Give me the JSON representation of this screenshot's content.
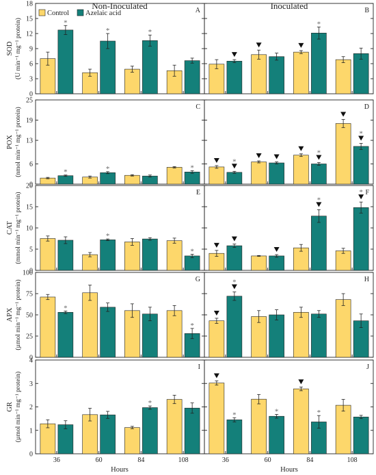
{
  "chart_data": {
    "type": "bar",
    "column_titles": [
      "Non-Inoculated",
      "Inoculated"
    ],
    "legend": [
      {
        "name": "Control",
        "color": "#FDD76B"
      },
      {
        "name": "Azelaic acid",
        "color": "#14807A"
      }
    ],
    "legend_placement": "top-left",
    "categories": [
      "36",
      "60",
      "84",
      "108"
    ],
    "xlabel": "Hours",
    "colors": {
      "control": "#FDD76B",
      "azelaic": "#14807A",
      "edge": "#222222"
    },
    "grid": false,
    "rows": [
      {
        "ylabel_main": "SOD",
        "ylabel_unit": "(U min⁻¹ mg⁻¹ protein)",
        "ylim": [
          0,
          18
        ],
        "yticks": [
          0,
          3,
          6,
          9,
          12,
          15,
          18
        ],
        "ytick_labels": [
          "0",
          "3",
          "6",
          "9",
          "12",
          "15",
          "18"
        ],
        "panels": [
          {
            "letter": "A",
            "series": [
              {
                "name": "Control",
                "values": [
                  7.0,
                  4.2,
                  4.9,
                  4.6
                ],
                "errors": [
                  1.3,
                  0.7,
                  0.6,
                  1.1
                ],
                "marks": [
                  "",
                  "",
                  "",
                  ""
                ]
              },
              {
                "name": "Azelaic acid",
                "values": [
                  12.7,
                  10.5,
                  10.6,
                  6.6
                ],
                "errors": [
                  0.9,
                  1.5,
                  1.1,
                  0.5
                ],
                "marks": [
                  "*",
                  "*",
                  "*",
                  ""
                ]
              }
            ]
          },
          {
            "letter": "B",
            "series": [
              {
                "name": "Control",
                "values": [
                  5.9,
                  7.8,
                  8.3,
                  6.8
                ],
                "errors": [
                  0.9,
                  0.9,
                  0.3,
                  0.6
                ],
                "marks": [
                  "",
                  "▼",
                  "▼",
                  ""
                ]
              },
              {
                "name": "Azelaic acid",
                "values": [
                  6.5,
                  7.4,
                  12.1,
                  8.0
                ],
                "errors": [
                  0.3,
                  0.7,
                  1.2,
                  1.1
                ],
                "marks": [
                  "▼",
                  "",
                  "*",
                  ""
                ]
              }
            ]
          }
        ]
      },
      {
        "ylabel_main": "POX",
        "ylabel_unit": "(nmol min⁻¹ mg⁻¹ protein)",
        "ylim": [
          0,
          25
        ],
        "yticks": [
          0,
          6,
          13,
          19,
          25
        ],
        "ytick_labels": [
          "0",
          "6",
          "13",
          "19",
          "25"
        ],
        "panels": [
          {
            "letter": "C",
            "series": [
              {
                "name": "Control",
                "values": [
                  1.8,
                  2.1,
                  2.6,
                  5.0
                ],
                "errors": [
                  0.2,
                  0.3,
                  0.2,
                  0.2
                ],
                "marks": [
                  "",
                  "",
                  "",
                  ""
                ]
              },
              {
                "name": "Azelaic acid",
                "values": [
                  2.5,
                  3.4,
                  2.4,
                  3.6
                ],
                "errors": [
                  0.2,
                  0.3,
                  0.3,
                  0.4
                ],
                "marks": [
                  "*",
                  "*",
                  "",
                  "*"
                ]
              }
            ]
          },
          {
            "letter": "D",
            "series": [
              {
                "name": "Control",
                "values": [
                  5.1,
                  6.6,
                  8.6,
                  18.0
                ],
                "errors": [
                  0.4,
                  0.3,
                  0.4,
                  1.2
                ],
                "marks": [
                  "▼",
                  "▼",
                  "▼",
                  "▼"
                ]
              },
              {
                "name": "Azelaic acid",
                "values": [
                  3.5,
                  6.3,
                  6.0,
                  11.2
                ],
                "errors": [
                  0.3,
                  0.3,
                  0.4,
                  0.9
                ],
                "marks": [
                  "▼*",
                  "▼",
                  "▼*",
                  "▼*"
                ]
              }
            ]
          }
        ]
      },
      {
        "ylabel_main": "CAT",
        "ylabel_unit": "(mmol min⁻¹ mg⁻¹ protein)",
        "ylim": [
          0,
          20
        ],
        "yticks": [
          0,
          5,
          10,
          15,
          20
        ],
        "ytick_labels": [
          "0",
          "5",
          "10",
          "15",
          "20"
        ],
        "panels": [
          {
            "letter": "E",
            "series": [
              {
                "name": "Control",
                "values": [
                  7.5,
                  3.7,
                  6.7,
                  7.0
                ],
                "errors": [
                  0.6,
                  0.5,
                  0.8,
                  0.6
                ],
                "marks": [
                  "",
                  "",
                  "",
                  ""
                ]
              },
              {
                "name": "Azelaic acid",
                "values": [
                  7.1,
                  7.2,
                  7.4,
                  3.4
                ],
                "errors": [
                  0.8,
                  0.2,
                  0.3,
                  0.4
                ],
                "marks": [
                  "",
                  "*",
                  "",
                  "*"
                ]
              }
            ]
          },
          {
            "letter": "F",
            "series": [
              {
                "name": "Control",
                "values": [
                  4.0,
                  3.4,
                  5.3,
                  4.6
                ],
                "errors": [
                  0.7,
                  0.1,
                  0.8,
                  0.6
                ],
                "marks": [
                  "▼",
                  "",
                  "",
                  ""
                ]
              },
              {
                "name": "Azelaic acid",
                "values": [
                  5.8,
                  3.4,
                  12.8,
                  14.8
                ],
                "errors": [
                  0.4,
                  0.3,
                  1.5,
                  1.3
                ],
                "marks": [
                  "▼",
                  "▼",
                  "▼*",
                  "▼*"
                ]
              }
            ]
          }
        ]
      },
      {
        "ylabel_main": "APX",
        "ylabel_unit": "(µmol min⁻¹ mg⁻¹ protein)",
        "ylim": [
          0,
          100
        ],
        "yticks": [
          0,
          25,
          50,
          75,
          100
        ],
        "ytick_labels": [
          "0",
          "25",
          "50",
          "75",
          "100"
        ],
        "panels": [
          {
            "letter": "G",
            "series": [
              {
                "name": "Control",
                "values": [
                  71,
                  76,
                  55,
                  55
                ],
                "errors": [
                  3,
                  9,
                  8,
                  6
                ],
                "marks": [
                  "",
                  "",
                  "",
                  ""
                ]
              },
              {
                "name": "Azelaic acid",
                "values": [
                  53,
                  59,
                  51,
                  28
                ],
                "errors": [
                  1.5,
                  5,
                  8,
                  6
                ],
                "marks": [
                  "*",
                  "",
                  "",
                  "*"
                ]
              }
            ]
          },
          {
            "letter": "H",
            "series": [
              {
                "name": "Control",
                "values": [
                  43,
                  48,
                  53,
                  68
                ],
                "errors": [
                  3,
                  7,
                  6,
                  7
                ],
                "marks": [
                  "▼",
                  "",
                  "",
                  ""
                ]
              },
              {
                "name": "Azelaic acid",
                "values": [
                  72,
                  50,
                  51,
                  43
                ],
                "errors": [
                  5,
                  6,
                  4,
                  8
                ],
                "marks": [
                  "▼*",
                  "",
                  "",
                  ""
                ]
              }
            ]
          }
        ]
      },
      {
        "ylabel_main": "GR",
        "ylabel_unit": "(µmol min⁻¹ mg⁻¹ protein)",
        "ylim": [
          0,
          4
        ],
        "yticks": [
          0,
          1,
          2,
          3,
          4
        ],
        "ytick_labels": [
          "0",
          "1",
          "2",
          "3",
          "4"
        ],
        "panels": [
          {
            "letter": "I",
            "series": [
              {
                "name": "Control",
                "values": [
                  1.28,
                  1.67,
                  1.12,
                  2.32
                ],
                "errors": [
                  0.17,
                  0.27,
                  0.05,
                  0.18
                ],
                "marks": [
                  "",
                  "",
                  "",
                  ""
                ]
              },
              {
                "name": "Azelaic acid",
                "values": [
                  1.24,
                  1.66,
                  1.97,
                  1.95
                ],
                "errors": [
                  0.17,
                  0.15,
                  0.07,
                  0.22
                ],
                "marks": [
                  "",
                  "",
                  "*",
                  ""
                ]
              }
            ]
          },
          {
            "letter": "J",
            "series": [
              {
                "name": "Control",
                "values": [
                  3.02,
                  2.33,
                  2.77,
                  2.07
                ],
                "errors": [
                  0.09,
                  0.2,
                  0.08,
                  0.25
                ],
                "marks": [
                  "▼",
                  "",
                  "▼",
                  ""
                ]
              },
              {
                "name": "Azelaic acid",
                "values": [
                  1.45,
                  1.6,
                  1.36,
                  1.57
                ],
                "errors": [
                  0.09,
                  0.08,
                  0.27,
                  0.07
                ],
                "marks": [
                  "*",
                  "*",
                  "*",
                  ""
                ]
              }
            ]
          }
        ]
      }
    ]
  }
}
